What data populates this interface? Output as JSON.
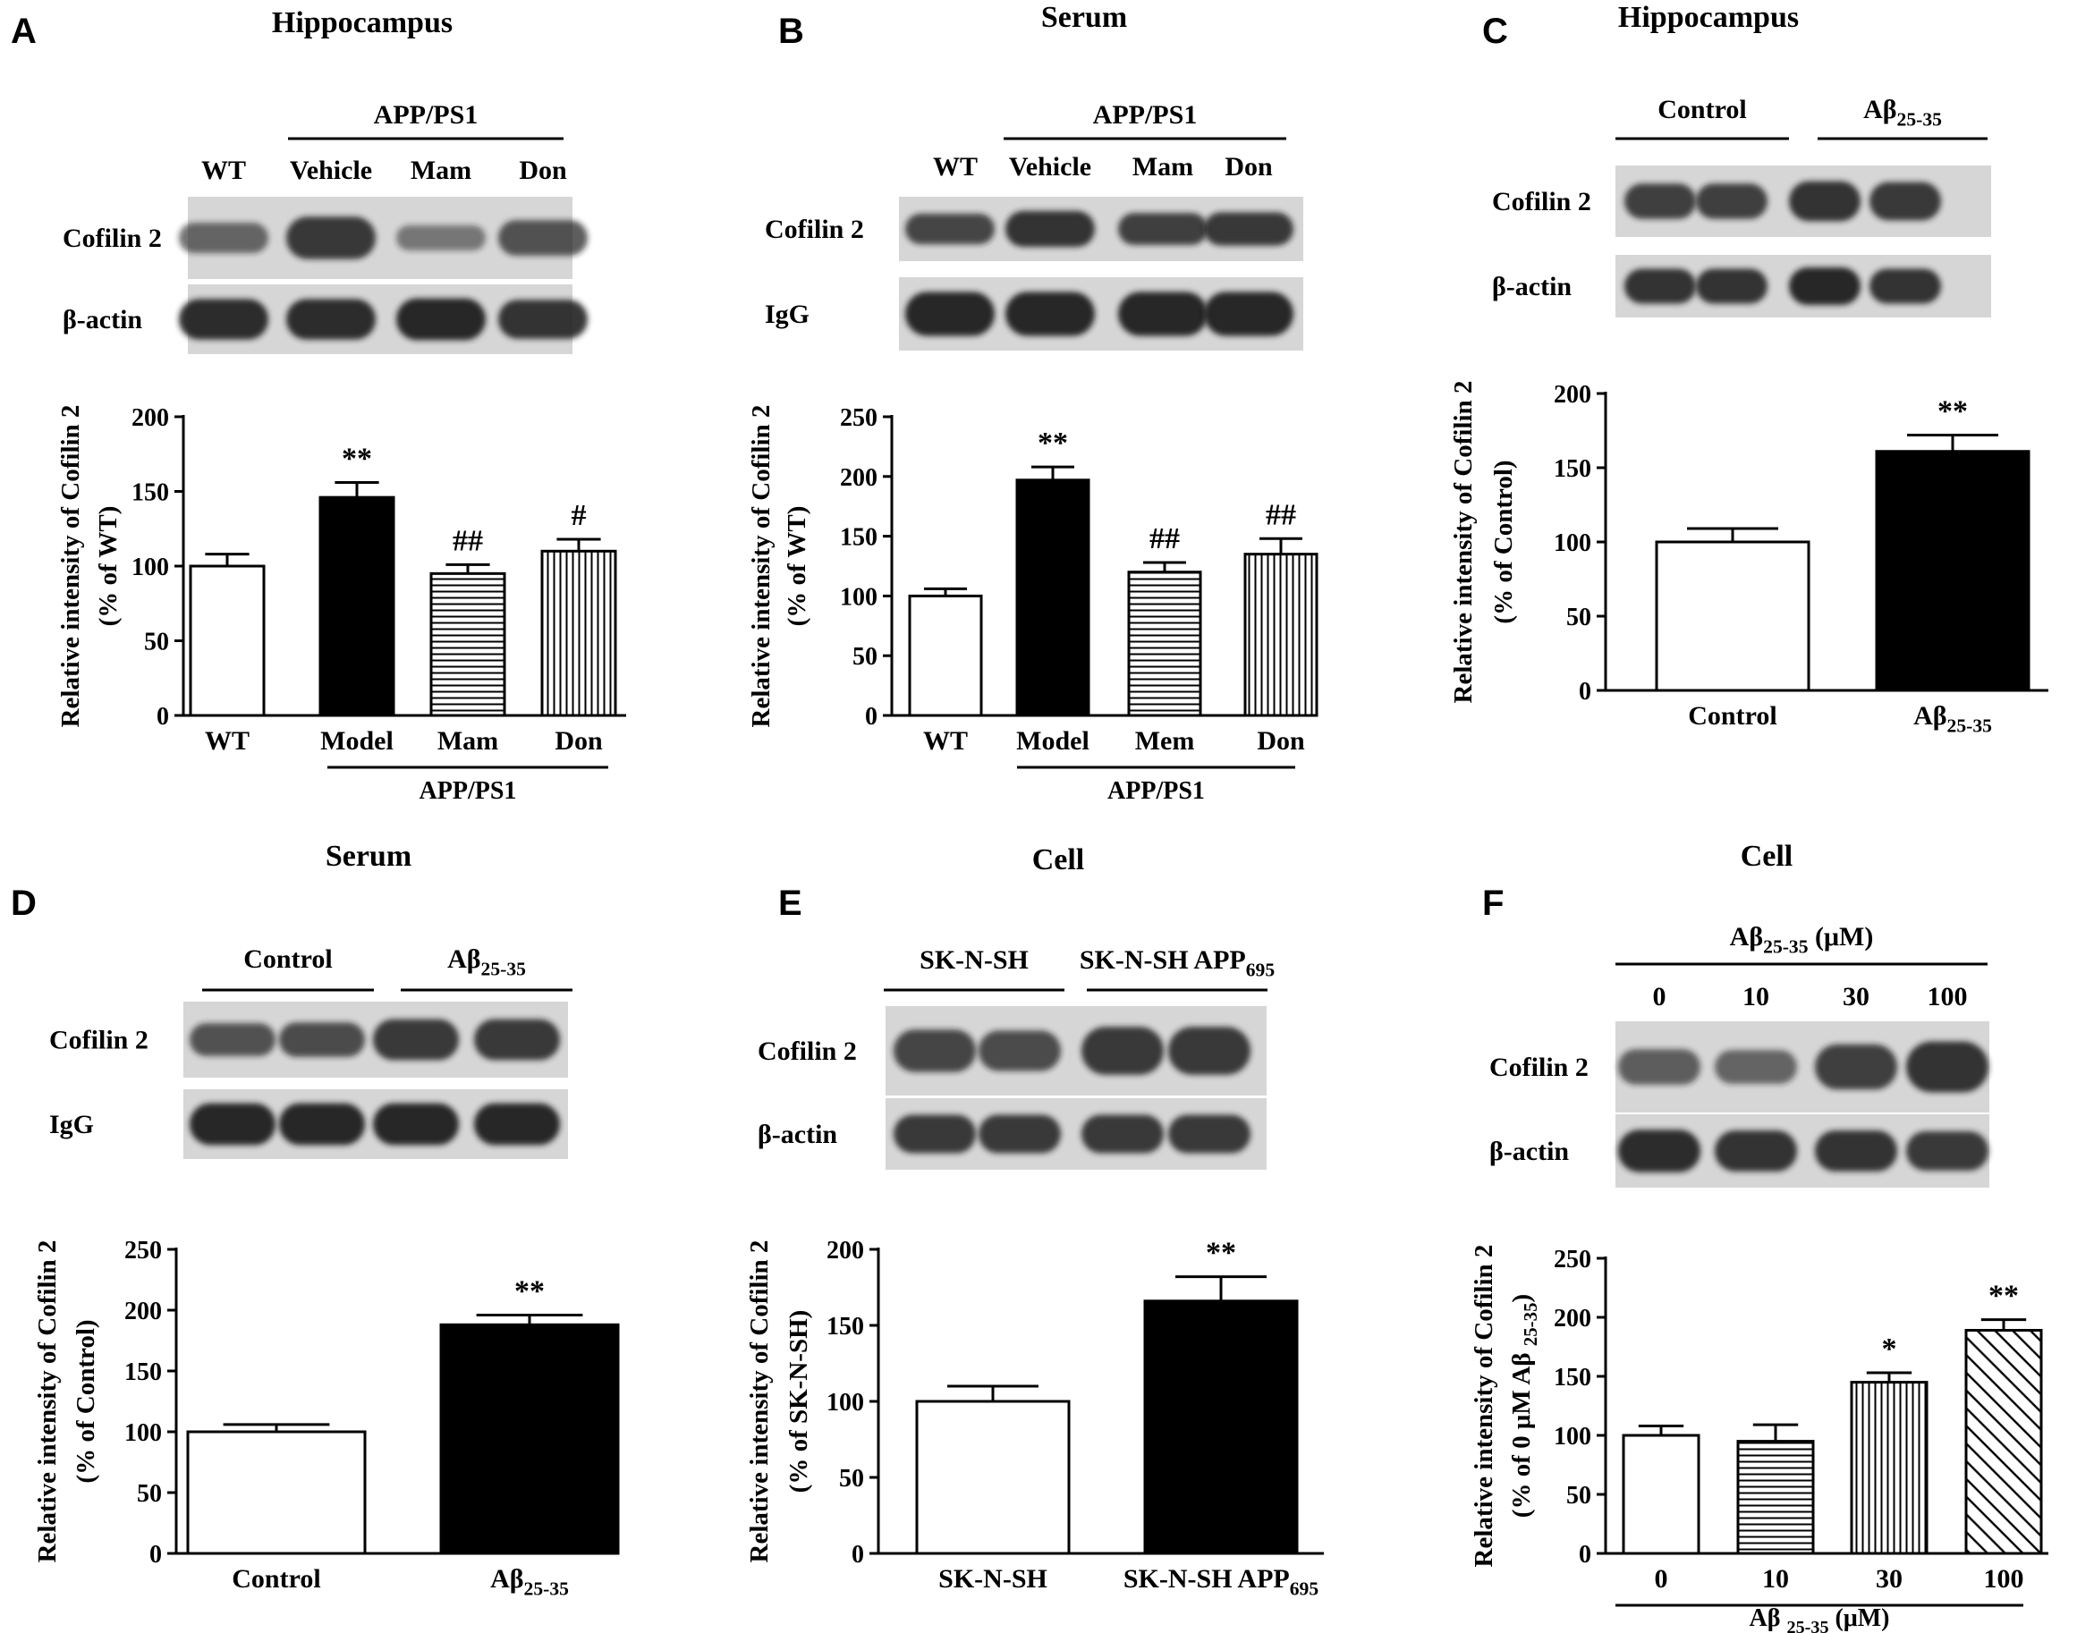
{
  "colors": {
    "ink": "#000000",
    "paper": "#ffffff",
    "blot_bg": "#d6d6d6",
    "band": "#1c1c1c"
  },
  "chart_data": [
    {
      "id": "A",
      "type": "bar",
      "panel_letter": "A",
      "title": "Hippocampus",
      "blot": {
        "group_labels": [
          "APP/PS1"
        ],
        "lane_labels": [
          "WT",
          "Vehicle",
          "Mam",
          "Don"
        ],
        "rows": [
          {
            "label": "Cofilin 2",
            "band_intensities": [
              0.45,
              0.8,
              0.3,
              0.6
            ]
          },
          {
            "label": "β-actin",
            "band_intensities": [
              0.95,
              0.95,
              1.0,
              0.9
            ]
          }
        ]
      },
      "ylabel": [
        "Relative intensity of Cofilin 2",
        "(% of  WT)"
      ],
      "ylim": [
        0,
        200
      ],
      "yticks": [
        0,
        50,
        100,
        150,
        200
      ],
      "categories": [
        "WT",
        "Model",
        "Mam",
        "Don"
      ],
      "values": [
        100,
        146,
        95,
        110
      ],
      "errors": [
        8,
        10,
        6,
        8
      ],
      "annotations": [
        "",
        "**",
        "##",
        "#"
      ],
      "patterns": [
        "white",
        "black",
        "hlines",
        "vlines"
      ],
      "group_label": "APP/PS1"
    },
    {
      "id": "B",
      "type": "bar",
      "panel_letter": "B",
      "title": "Serum",
      "blot": {
        "group_labels": [
          "APP/PS1"
        ],
        "lane_labels": [
          "WT",
          "Vehicle",
          "Mam",
          "Don"
        ],
        "rows": [
          {
            "label": "Cofilin 2",
            "band_intensities": [
              0.7,
              0.9,
              0.75,
              0.8
            ]
          },
          {
            "label": "IgG",
            "band_intensities": [
              1.0,
              1.0,
              1.0,
              1.0
            ]
          }
        ]
      },
      "ylabel": [
        "Relative intensity of Cofilin 2",
        "(% of  WT)"
      ],
      "ylim": [
        0,
        250
      ],
      "yticks": [
        0,
        50,
        100,
        150,
        200,
        250
      ],
      "categories": [
        "WT",
        "Model",
        "Mem",
        "Don"
      ],
      "values": [
        100,
        197,
        120,
        135
      ],
      "errors": [
        6,
        11,
        8,
        13
      ],
      "annotations": [
        "",
        "**",
        "##",
        "##"
      ],
      "patterns": [
        "white",
        "black",
        "hlines",
        "vlines"
      ],
      "group_label": "APP/PS1"
    },
    {
      "id": "C",
      "type": "bar",
      "panel_letter": "C",
      "title": "Hippocampus",
      "blot": {
        "group_labels": [
          "Control",
          "Aβ25-35"
        ],
        "lane_labels": [],
        "rows": [
          {
            "label": "Cofilin 2",
            "band_intensities": [
              0.75,
              0.75,
              0.9,
              0.85
            ]
          },
          {
            "label": "β-actin",
            "band_intensities": [
              0.9,
              0.9,
              1.0,
              0.9
            ]
          }
        ]
      },
      "ylabel": [
        "Relative intensity of Cofilin 2",
        "(% of  Control)"
      ],
      "ylim": [
        0,
        200
      ],
      "yticks": [
        0,
        50,
        100,
        150,
        200
      ],
      "categories": [
        "Control",
        "Aβ25-35"
      ],
      "values": [
        100,
        161
      ],
      "errors": [
        9,
        11
      ],
      "annotations": [
        "",
        "**"
      ],
      "patterns": [
        "white",
        "black"
      ],
      "group_label": ""
    },
    {
      "id": "D",
      "type": "bar",
      "panel_letter": "D",
      "title": "Serum",
      "blot": {
        "group_labels": [
          "Control",
          "Aβ25-35"
        ],
        "lane_labels": [],
        "rows": [
          {
            "label": "Cofilin 2",
            "band_intensities": [
              0.6,
              0.65,
              0.85,
              0.85
            ]
          },
          {
            "label": "IgG",
            "band_intensities": [
              1.0,
              1.0,
              1.0,
              1.0
            ]
          }
        ]
      },
      "ylabel": [
        "Relative intensity of Cofilin 2",
        "(% of Control)"
      ],
      "ylim": [
        0,
        250
      ],
      "yticks": [
        0,
        50,
        100,
        150,
        200,
        250
      ],
      "categories": [
        "Control",
        "Aβ25-35"
      ],
      "values": [
        100,
        188
      ],
      "errors": [
        6,
        8
      ],
      "annotations": [
        "",
        "**"
      ],
      "patterns": [
        "white",
        "black"
      ],
      "group_label": ""
    },
    {
      "id": "E",
      "type": "bar",
      "panel_letter": "E",
      "title": "Cell",
      "blot": {
        "group_labels": [
          "SK-N-SH",
          "SK-N-SH APP695"
        ],
        "lane_labels": [],
        "rows": [
          {
            "label": "Cofilin 2",
            "band_intensities": [
              0.7,
              0.65,
              0.85,
              0.85
            ]
          },
          {
            "label": "β-actin",
            "band_intensities": [
              0.85,
              0.85,
              0.85,
              0.85
            ]
          }
        ]
      },
      "ylabel": [
        "Relative intensity of Cofilin 2",
        "(% of  SK-N-SH)"
      ],
      "ylim": [
        0,
        200
      ],
      "yticks": [
        0,
        50,
        100,
        150,
        200
      ],
      "categories": [
        "SK-N-SH",
        "SK-N-SH APP695"
      ],
      "values": [
        100,
        166
      ],
      "errors": [
        10,
        16
      ],
      "annotations": [
        "",
        "**"
      ],
      "patterns": [
        "white",
        "black"
      ],
      "group_label": ""
    },
    {
      "id": "F",
      "type": "bar",
      "panel_letter": "F",
      "title": "Cell",
      "blot": {
        "group_labels": [
          "Aβ25-35 (μM)"
        ],
        "lane_labels": [
          "0",
          "10",
          "30",
          "100"
        ],
        "rows": [
          {
            "label": "Cofilin 2",
            "band_intensities": [
              0.5,
              0.45,
              0.75,
              0.9
            ]
          },
          {
            "label": "β-actin",
            "band_intensities": [
              0.95,
              0.9,
              0.9,
              0.85
            ]
          }
        ]
      },
      "ylabel": [
        "Relative intensity of Cofilin 2",
        "(% of 0 μM Aβ 25-35)"
      ],
      "ylim": [
        0,
        250
      ],
      "yticks": [
        0,
        50,
        100,
        150,
        200,
        250
      ],
      "categories": [
        "0",
        "10",
        "30",
        "100"
      ],
      "values": [
        100,
        95,
        145,
        189
      ],
      "errors": [
        8,
        14,
        8,
        9
      ],
      "annotations": [
        "",
        "",
        "*",
        "**"
      ],
      "patterns": [
        "white",
        "hlines",
        "vlines",
        "diag"
      ],
      "group_label": "Aβ 25-35 (μM)"
    }
  ]
}
